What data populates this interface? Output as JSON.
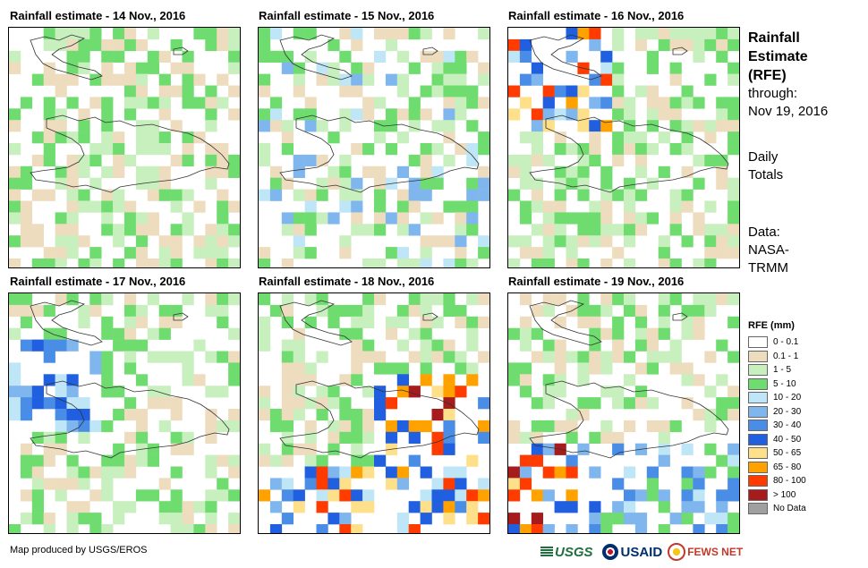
{
  "panels": [
    {
      "title": "Rainfall estimate - 14 Nov., 2016",
      "day": 14
    },
    {
      "title": "Rainfall estimate - 15 Nov., 2016",
      "day": 15
    },
    {
      "title": "Rainfall estimate - 16 Nov., 2016",
      "day": 16
    },
    {
      "title": "Rainfall estimate - 17 Nov., 2016",
      "day": 17
    },
    {
      "title": "Rainfall estimate - 18 Nov., 2016",
      "day": 18
    },
    {
      "title": "Rainfall estimate - 19 Nov., 2016",
      "day": 19
    }
  ],
  "side": {
    "title_line1": "Rainfall",
    "title_line2": "Estimate",
    "title_line3": "(RFE)",
    "through_label": "through:",
    "through_date": "Nov 19, 2016",
    "daily_line1": "Daily",
    "daily_line2": "Totals",
    "data_line1": "Data:",
    "data_line2": "NASA-",
    "data_line3": "TRMM"
  },
  "legend": {
    "title": "RFE (mm)",
    "items": [
      {
        "label": "0 - 0.1",
        "color": "#ffffff"
      },
      {
        "label": "0.1 - 1",
        "color": "#eedcbe"
      },
      {
        "label": "1 - 5",
        "color": "#c8efbe"
      },
      {
        "label": "5 - 10",
        "color": "#6fdc6f"
      },
      {
        "label": "10 - 20",
        "color": "#bfe6f7"
      },
      {
        "label": "20 - 30",
        "color": "#7fb6ee"
      },
      {
        "label": "30 - 40",
        "color": "#4a8de6"
      },
      {
        "label": "40 - 50",
        "color": "#1f5fe0"
      },
      {
        "label": "50 - 65",
        "color": "#ffe08a"
      },
      {
        "label": "65 - 80",
        "color": "#ffa200"
      },
      {
        "label": "80 - 100",
        "color": "#ff3b00"
      },
      {
        "label": "> 100",
        "color": "#a61c1c"
      },
      {
        "label": "No Data",
        "color": "#a0a0a0"
      }
    ]
  },
  "credit": "Map produced by USGS/EROS",
  "logos": {
    "usgs": "USGS",
    "usaid": "USAID",
    "fews": "FEWS NET"
  }
}
